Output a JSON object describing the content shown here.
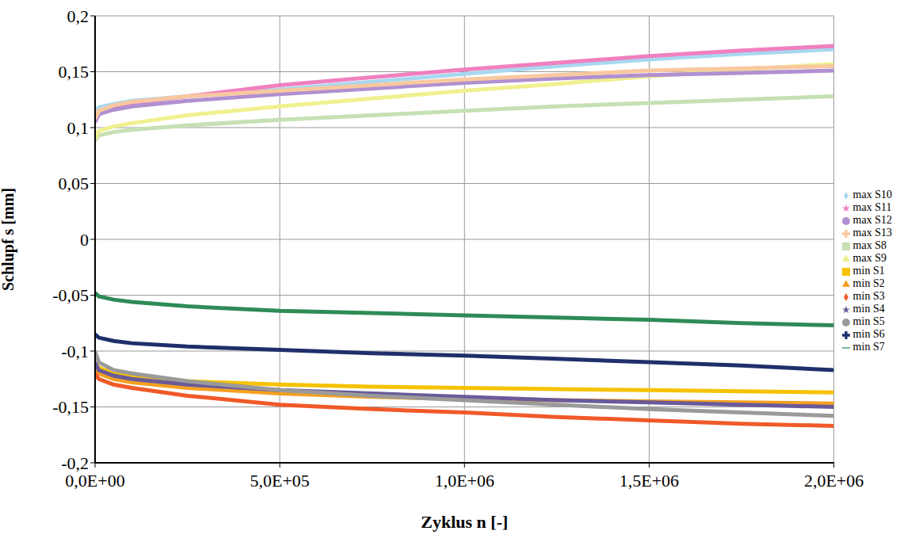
{
  "chart_data": {
    "type": "line",
    "x_label": "Zyklus n [-]",
    "y_label": "Schlupf s [mm]",
    "x": [
      0,
      10000,
      50000,
      100000,
      250000,
      500000,
      750000,
      1000000,
      1250000,
      1500000,
      1750000,
      2000000
    ],
    "xlim": [
      0,
      2000000
    ],
    "xticks": [
      {
        "value": 0,
        "label": "0,0E+00"
      },
      {
        "value": 500000,
        "label": "5,0E+05"
      },
      {
        "value": 1000000,
        "label": "1,0E+06"
      },
      {
        "value": 1500000,
        "label": "1,5E+06"
      },
      {
        "value": 2000000,
        "label": "2,0E+06"
      }
    ],
    "ylim": [
      -0.2,
      0.2
    ],
    "yticks": [
      {
        "value": -0.2,
        "label": "-0,2"
      },
      {
        "value": -0.15,
        "label": "-0,15"
      },
      {
        "value": -0.1,
        "label": "-0,1"
      },
      {
        "value": -0.05,
        "label": "-0,05"
      },
      0,
      {
        "value": 0.05,
        "label": "0,05"
      },
      {
        "value": 0.1,
        "label": "0,1"
      },
      {
        "value": 0.15,
        "label": "0,15"
      },
      {
        "value": 0.2,
        "label": "0,2"
      }
    ],
    "grid": true,
    "legend": "right",
    "series": [
      {
        "name": "min S1",
        "color": "#f5c200",
        "marker": "square",
        "values": [
          -0.11,
          -0.115,
          -0.12,
          -0.122,
          -0.127,
          -0.13,
          -0.132,
          -0.133,
          -0.134,
          -0.135,
          -0.136,
          -0.137
        ]
      },
      {
        "name": "min S2",
        "color": "#f4a020",
        "marker": "triangle",
        "values": [
          -0.115,
          -0.12,
          -0.125,
          -0.128,
          -0.133,
          -0.138,
          -0.141,
          -0.143,
          -0.144,
          -0.145,
          -0.146,
          -0.147
        ]
      },
      {
        "name": "min S3",
        "color": "#f05a28",
        "marker": "diamond",
        "values": [
          -0.12,
          -0.125,
          -0.13,
          -0.133,
          -0.14,
          -0.148,
          -0.152,
          -0.155,
          -0.159,
          -0.162,
          -0.165,
          -0.167
        ]
      },
      {
        "name": "min S4",
        "color": "#6a5a9a",
        "marker": "star",
        "values": [
          -0.11,
          -0.117,
          -0.122,
          -0.125,
          -0.13,
          -0.135,
          -0.138,
          -0.141,
          -0.144,
          -0.146,
          -0.148,
          -0.15
        ]
      },
      {
        "name": "min S5",
        "color": "#9a9a9a",
        "marker": "circle",
        "values": [
          -0.1,
          -0.11,
          -0.117,
          -0.12,
          -0.127,
          -0.135,
          -0.14,
          -0.144,
          -0.148,
          -0.152,
          -0.155,
          -0.158
        ]
      },
      {
        "name": "min S6",
        "color": "#1f2f6b",
        "marker": "cross",
        "values": [
          -0.085,
          -0.088,
          -0.091,
          -0.093,
          -0.096,
          -0.099,
          -0.102,
          -0.104,
          -0.107,
          -0.11,
          -0.113,
          -0.117
        ]
      },
      {
        "name": "min S7",
        "color": "#2e8b57",
        "marker": "plainline",
        "values": [
          -0.048,
          -0.051,
          -0.054,
          -0.056,
          -0.06,
          -0.064,
          -0.066,
          -0.068,
          -0.07,
          -0.072,
          -0.075,
          -0.077
        ]
      },
      {
        "name": "max S8",
        "color": "#c6e0b4",
        "marker": "square",
        "values": [
          0.088,
          0.093,
          0.096,
          0.098,
          0.102,
          0.107,
          0.111,
          0.115,
          0.119,
          0.122,
          0.125,
          0.128
        ]
      },
      {
        "name": "max S9",
        "color": "#f0f090",
        "marker": "triangle",
        "values": [
          0.09,
          0.097,
          0.101,
          0.104,
          0.111,
          0.119,
          0.126,
          0.133,
          0.139,
          0.146,
          0.152,
          0.157
        ]
      },
      {
        "name": "max S10",
        "color": "#a8d8f0",
        "marker": "diamond",
        "values": [
          0.115,
          0.118,
          0.121,
          0.124,
          0.128,
          0.134,
          0.141,
          0.148,
          0.155,
          0.161,
          0.166,
          0.17
        ]
      },
      {
        "name": "max S11",
        "color": "#f080c0",
        "marker": "star",
        "values": [
          0.105,
          0.112,
          0.118,
          0.122,
          0.128,
          0.138,
          0.145,
          0.152,
          0.158,
          0.164,
          0.169,
          0.173
        ]
      },
      {
        "name": "max S12",
        "color": "#b090d0",
        "marker": "circle",
        "values": [
          0.105,
          0.112,
          0.116,
          0.119,
          0.124,
          0.13,
          0.135,
          0.14,
          0.144,
          0.147,
          0.149,
          0.151
        ]
      },
      {
        "name": "max S13",
        "color": "#f8c8a0",
        "marker": "cross",
        "values": [
          0.108,
          0.115,
          0.12,
          0.123,
          0.128,
          0.133,
          0.138,
          0.143,
          0.147,
          0.151,
          0.153,
          0.155
        ]
      }
    ]
  }
}
